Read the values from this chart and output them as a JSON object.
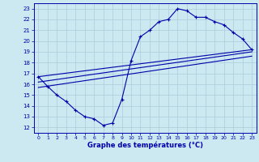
{
  "title": "Graphe des températures (°C)",
  "xlim": [
    -0.5,
    23.5
  ],
  "ylim": [
    11.5,
    23.5
  ],
  "xticks": [
    0,
    1,
    2,
    3,
    4,
    5,
    6,
    7,
    8,
    9,
    10,
    11,
    12,
    13,
    14,
    15,
    16,
    17,
    18,
    19,
    20,
    21,
    22,
    23
  ],
  "yticks": [
    12,
    13,
    14,
    15,
    16,
    17,
    18,
    19,
    20,
    21,
    22,
    23
  ],
  "bg_color": "#cce8f0",
  "line_color": "#0000aa",
  "grid_color": "#aaccdd",
  "curve1_x": [
    0,
    1,
    2,
    3,
    4,
    5,
    6,
    7,
    8,
    9,
    10,
    11,
    12,
    13,
    14,
    15,
    16,
    17,
    18,
    19,
    20,
    21,
    22,
    23
  ],
  "curve1_y": [
    16.7,
    15.8,
    15.0,
    14.4,
    13.6,
    13.0,
    12.8,
    12.2,
    12.4,
    14.6,
    18.2,
    20.4,
    21.0,
    21.8,
    22.0,
    23.0,
    22.8,
    22.2,
    22.2,
    21.8,
    21.5,
    20.8,
    20.2,
    19.2
  ],
  "line2_x": [
    0,
    23
  ],
  "line2_y": [
    16.7,
    19.2
  ],
  "line3_x": [
    0,
    23
  ],
  "line3_y": [
    16.2,
    19.0
  ],
  "line4_x": [
    0,
    23
  ],
  "line4_y": [
    15.7,
    18.6
  ],
  "marker": "+"
}
